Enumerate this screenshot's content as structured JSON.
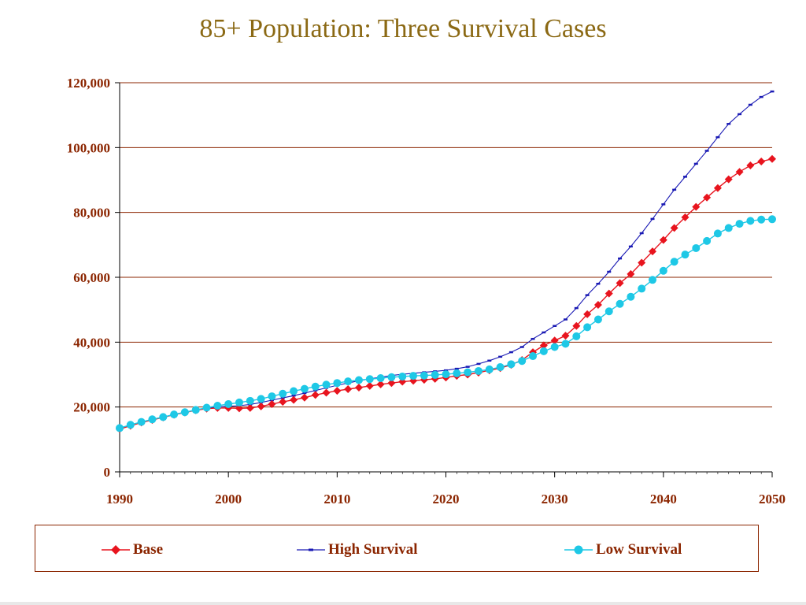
{
  "title": "85+ Population: Three Survival Cases",
  "colors": {
    "title": "#8b6914",
    "axis_text": "#8b2500",
    "grid": "#8b2500",
    "base": "#e8141e",
    "high": "#1a1ab4",
    "low": "#1ec8e6"
  },
  "chart_data": {
    "type": "line",
    "title": "85+ Population: Three Survival Cases",
    "xlabel": "",
    "ylabel": "",
    "xlim": [
      1990,
      2050
    ],
    "ylim": [
      0,
      120000
    ],
    "grid": "horizontal",
    "legend_position": "bottom",
    "x_ticks": [
      "1990",
      "2000",
      "2010",
      "2020",
      "2030",
      "2040",
      "2050"
    ],
    "y_ticks": [
      "0",
      "20,000",
      "40,000",
      "60,000",
      "80,000",
      "100,000",
      "120,000"
    ],
    "x": [
      1990,
      1991,
      1992,
      1993,
      1994,
      1995,
      1996,
      1997,
      1998,
      1999,
      2000,
      2001,
      2002,
      2003,
      2004,
      2005,
      2006,
      2007,
      2008,
      2009,
      2010,
      2011,
      2012,
      2013,
      2014,
      2015,
      2016,
      2017,
      2018,
      2019,
      2020,
      2021,
      2022,
      2023,
      2024,
      2025,
      2026,
      2027,
      2028,
      2029,
      2030,
      2031,
      2032,
      2033,
      2034,
      2035,
      2036,
      2037,
      2038,
      2039,
      2040,
      2041,
      2042,
      2043,
      2044,
      2045,
      2046,
      2047,
      2048,
      2049,
      2050
    ],
    "series": [
      {
        "name": "Base",
        "marker": "diamond",
        "values": [
          13200,
          14200,
          15200,
          16000,
          16800,
          17600,
          18300,
          19000,
          19500,
          19700,
          19700,
          19600,
          19700,
          20200,
          20900,
          21600,
          22200,
          22900,
          23700,
          24400,
          25000,
          25500,
          26000,
          26500,
          27000,
          27400,
          27800,
          28100,
          28400,
          28700,
          29100,
          29600,
          30000,
          30600,
          31300,
          32000,
          33000,
          34500,
          36900,
          39000,
          40500,
          42000,
          45000,
          48600,
          51500,
          55000,
          58200,
          61000,
          64500,
          68000,
          71500,
          75200,
          78500,
          81700,
          84600,
          87500,
          90200,
          92500,
          94500,
          95700,
          96500
        ]
      },
      {
        "name": "High Survival",
        "marker": "dash",
        "values": [
          13200,
          14300,
          15300,
          16100,
          16900,
          17700,
          18400,
          19100,
          19700,
          20000,
          20200,
          20400,
          20800,
          21400,
          22100,
          22800,
          23500,
          24300,
          25100,
          25900,
          26700,
          27400,
          28100,
          28700,
          29200,
          29700,
          30100,
          30400,
          30700,
          31000,
          31300,
          31800,
          32400,
          33300,
          34300,
          35500,
          36900,
          38500,
          41000,
          43000,
          45000,
          47000,
          50500,
          54500,
          58000,
          61700,
          65800,
          69500,
          73600,
          78000,
          82500,
          87000,
          91000,
          95000,
          99000,
          103200,
          107300,
          110300,
          113200,
          115600,
          117300
        ]
      },
      {
        "name": "Low Survival",
        "marker": "circle",
        "values": [
          13500,
          14500,
          15400,
          16200,
          16900,
          17700,
          18400,
          19100,
          19800,
          20400,
          20900,
          21400,
          21900,
          22500,
          23300,
          24100,
          24900,
          25600,
          26300,
          26900,
          27400,
          27900,
          28300,
          28600,
          28900,
          29200,
          29400,
          29600,
          29700,
          29900,
          30100,
          30400,
          30700,
          31100,
          31600,
          32300,
          33200,
          34200,
          35700,
          37200,
          38500,
          39500,
          41800,
          44600,
          47000,
          49500,
          51800,
          54000,
          56500,
          59200,
          62000,
          64800,
          67000,
          69000,
          71200,
          73500,
          75200,
          76500,
          77400,
          77800,
          77900
        ]
      }
    ]
  },
  "legend": {
    "base_label": "Base",
    "high_label": "High Survival",
    "low_label": "Low Survival"
  }
}
